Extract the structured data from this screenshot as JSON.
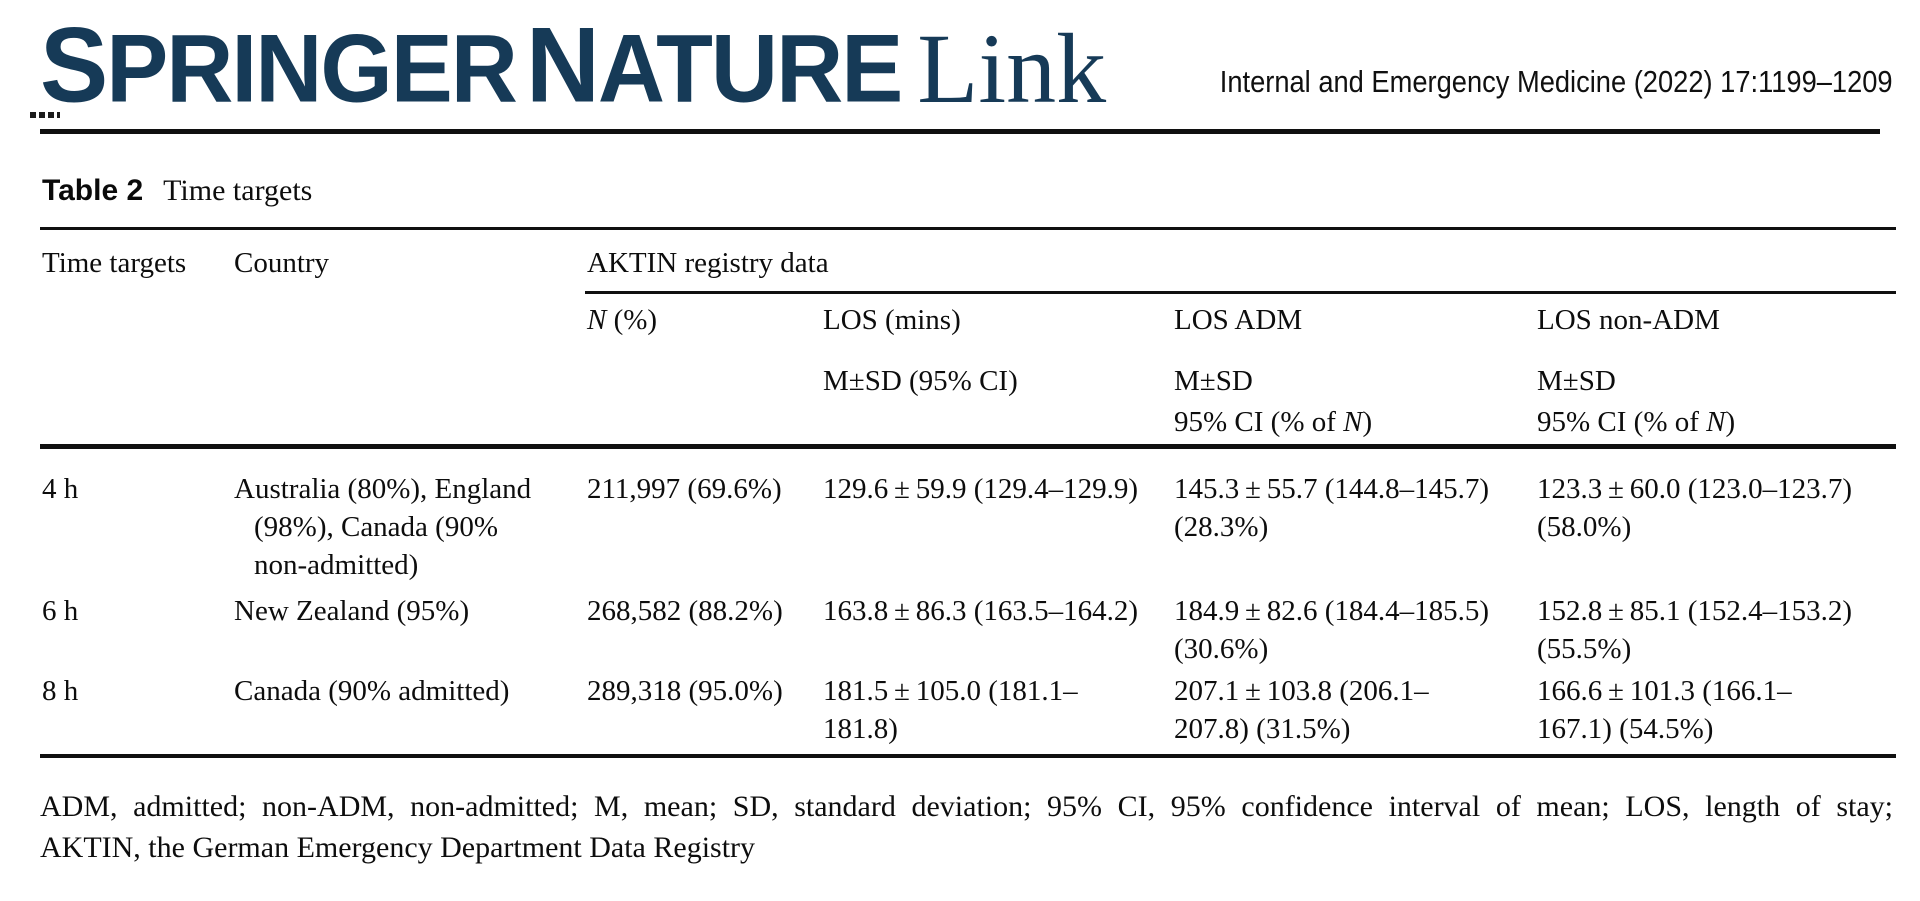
{
  "header": {
    "logo_word1": "SPRINGER",
    "logo_word2": "NATURE",
    "logo_link": "Link",
    "journal_ref": "Internal and Emergency Medicine (2022) 17:1199–1209"
  },
  "caption": {
    "label": "Table 2",
    "title": "Time targets"
  },
  "table": {
    "col1_header": "Time targets",
    "col2_header": "Country",
    "span_header": "AKTIN registry data",
    "sub": {
      "n_italic": "N",
      "n_rest": " (%)",
      "los_mins": "LOS (mins)",
      "los_mins_stat": "M±SD (95% CI)",
      "los_adm": "LOS ADM",
      "los_nonadm": "LOS non-ADM",
      "msd": "M±SD",
      "ci_prefix": "95% CI (% of ",
      "ci_italic": "N",
      "ci_suffix": ")"
    },
    "rows": [
      {
        "target": "4 h",
        "country_lines": [
          "Australia (80%), England",
          "(98%), Canada (90%",
          "non-admitted)"
        ],
        "n": "211,997 (69.6%)",
        "los_lines": [
          "129.6 ± 59.9 (129.4–129.9)"
        ],
        "adm_lines": [
          "145.3 ± 55.7 (144.8–145.7)",
          "(28.3%)"
        ],
        "nonadm_lines": [
          "123.3 ± 60.0 (123.0–123.7)",
          "(58.0%)"
        ]
      },
      {
        "target": "6 h",
        "country_lines": [
          "New Zealand (95%)"
        ],
        "n": "268,582 (88.2%)",
        "los_lines": [
          "163.8 ± 86.3 (163.5–164.2)"
        ],
        "adm_lines": [
          "184.9 ± 82.6 (184.4–185.5)",
          "(30.6%)"
        ],
        "nonadm_lines": [
          "152.8 ± 85.1 (152.4–153.2)",
          "(55.5%)"
        ]
      },
      {
        "target": "8 h",
        "country_lines": [
          "Canada (90% admitted)"
        ],
        "n": "289,318 (95.0%)",
        "los_lines": [
          "181.5 ± 105.0 (181.1–",
          "181.8)"
        ],
        "adm_lines": [
          "207.1 ± 103.8 (206.1–",
          "207.8) (31.5%)"
        ],
        "nonadm_lines": [
          "166.6 ± 101.3 (166.1–",
          "167.1) (54.5%)"
        ]
      }
    ]
  },
  "footnote": {
    "line1": "ADM, admitted; non-ADM, non-admitted; M, mean; SD, standard deviation; 95% CI, 95% confidence interval of mean; LOS, length of stay;",
    "line2": "AKTIN, the German Emergency Department Data Registry"
  },
  "colors": {
    "brand_blue": "#163a57",
    "text": "#0d0d0d",
    "rule": "#101010"
  }
}
